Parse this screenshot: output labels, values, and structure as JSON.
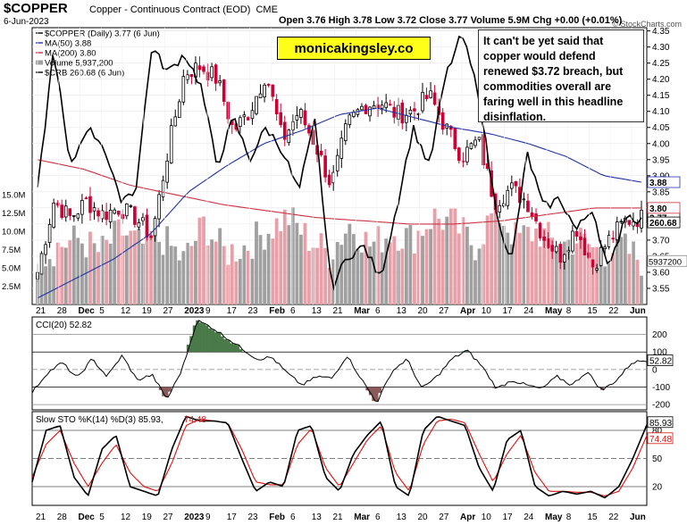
{
  "header": {
    "symbol": "$COPPER",
    "name": "Copper - Continuous Contract (EOD)",
    "exchange": "CME",
    "date": "6-Jun-2023",
    "credit": "© StockCharts.com",
    "ohlc": "Open 3.76  High 3.78  Low 3.72  Close 3.77  Volume 5.9M  Chg +0.00 (+0.01%)"
  },
  "logo": "monicakingsley.co",
  "note": "It can't be yet said that copper would defend renewed $3.72 breach, but commodities overall are faring well in this headline disinflation.",
  "colors": {
    "up": "#000000",
    "down": "#cc0033",
    "ma50": "#2233aa",
    "ma200": "#cc3344",
    "crb": "#000000",
    "volume": "#a0a0a0",
    "volume_down": "#e8a0a8",
    "cci_pos": "#4a7a4a",
    "cci_neg": "#8a5a5a",
    "stoch_k": "#000000",
    "stoch_d": "#dd1111"
  },
  "legend": [
    {
      "text": "$COPPER (Daily) 3.77 (6 Jun)"
    },
    {
      "text": "MA(50) 3.88"
    },
    {
      "text": "MA(200) 3.80"
    },
    {
      "text": "Volume 5,937,200"
    },
    {
      "text": "$CRB 260.68 (6 Jun)"
    }
  ],
  "chart_data": [
    {
      "type": "candlestick",
      "ylim": [
        3.5,
        4.36
      ],
      "ticks_right": [
        "3.55",
        "3.60",
        "3.65",
        "3.70",
        "3.75",
        "3.80",
        "3.85",
        "3.90",
        "3.95",
        "4.00",
        "4.05",
        "4.10",
        "4.15",
        "4.20",
        "4.25",
        "4.30",
        "4.35"
      ],
      "price_labels": [
        "3.77",
        "3.80",
        "3.88",
        "260.68"
      ],
      "volume_ticks_left": [
        "2.5M",
        "5.0M",
        "7.5M",
        "10.0M",
        "12.5M",
        "15.0M"
      ],
      "volume_label": "5937200",
      "x_labels": [
        "21",
        "28",
        "Dec",
        "5",
        "12",
        "19",
        "27",
        "2023",
        "9",
        "17",
        "23",
        "Feb",
        "6",
        "13",
        "21",
        "Mar",
        "6",
        "13",
        "20",
        "27",
        "Apr",
        "10",
        "17",
        "24",
        "May",
        "8",
        "15",
        "22",
        "Jun"
      ],
      "waypoints": {
        "close": [
          3.6,
          3.82,
          3.77,
          3.82,
          3.78,
          3.8,
          3.77,
          3.71,
          3.98,
          4.22,
          4.24,
          4.2,
          4.04,
          4.1,
          4.22,
          4.01,
          4.1,
          4.0,
          3.87,
          4.06,
          4.12,
          4.13,
          4.09,
          4.1,
          4.15,
          4.05,
          3.96,
          4.01,
          3.82,
          3.86,
          3.82,
          3.71,
          3.65,
          3.74,
          3.62,
          3.7,
          3.76,
          3.77
        ],
        "crb": [
          3.85,
          4.3,
          3.92,
          4.05,
          4.0,
          3.83,
          3.85,
          4.3,
          4.22,
          4.28,
          4.18,
          3.93,
          4.08,
          3.95,
          4.05,
          3.98,
          3.85,
          4.07,
          3.55,
          3.65,
          3.68,
          3.58,
          3.8,
          4.05,
          3.93,
          4.21,
          4.34,
          4.16,
          3.82,
          3.62,
          3.97,
          3.8,
          3.83,
          3.73,
          3.8,
          3.6,
          3.78,
          3.76
        ],
        "ma50": [
          3.52,
          3.58,
          3.64,
          3.72,
          3.85,
          3.93,
          4.0,
          4.04,
          4.09,
          4.11,
          4.08,
          4.05,
          4.03,
          4.0,
          3.96,
          3.9,
          3.88
        ],
        "ma200": [
          3.95,
          3.92,
          3.87,
          3.84,
          3.81,
          3.79,
          3.77,
          3.76,
          3.75,
          3.75,
          3.76,
          3.78,
          3.8,
          3.8
        ],
        "volume_millions": [
          6,
          8,
          9,
          7,
          10,
          8,
          9,
          6,
          11,
          7,
          8,
          10,
          12,
          9,
          7,
          11,
          8,
          10,
          9,
          12,
          11,
          8,
          13,
          9,
          10,
          8,
          9,
          7,
          8,
          6
        ]
      }
    },
    {
      "type": "line",
      "title": "CCI(20) 52.82",
      "ticks_right": [
        "-200",
        "-100",
        "0",
        "100",
        "200"
      ],
      "value_label": "52.82",
      "ylim": [
        -230,
        300
      ],
      "waypoints": [
        -130,
        -20,
        40,
        -50,
        60,
        -40,
        80,
        -60,
        -30,
        -170,
        0,
        280,
        240,
        180,
        120,
        60,
        70,
        -20,
        -90,
        -40,
        -50,
        80,
        -60,
        -190,
        -10,
        60,
        -110,
        -40,
        60,
        110,
        20,
        -110,
        -60,
        -90,
        -110,
        -40,
        -90,
        -10,
        -120,
        -60,
        40,
        52.82
      ]
    },
    {
      "type": "line",
      "title": "Slow STO %K(14) %D(3) 85.93, 74.48",
      "ticks_right": [
        "20",
        "50",
        "80"
      ],
      "value_labels": [
        "85.93",
        "74.48"
      ],
      "ylim": [
        0,
        100
      ],
      "waypoints": {
        "k": [
          25,
          80,
          85,
          30,
          10,
          60,
          75,
          20,
          15,
          10,
          60,
          95,
          90,
          90,
          88,
          50,
          15,
          25,
          20,
          80,
          85,
          30,
          15,
          55,
          75,
          90,
          20,
          10,
          80,
          95,
          90,
          85,
          40,
          15,
          70,
          80,
          20,
          10,
          15,
          12,
          15,
          8,
          20,
          50,
          85.93
        ],
        "d": [
          30,
          65,
          80,
          45,
          20,
          45,
          65,
          35,
          20,
          15,
          45,
          85,
          92,
          90,
          88,
          60,
          25,
          22,
          22,
          65,
          82,
          40,
          20,
          45,
          70,
          85,
          35,
          15,
          65,
          90,
          92,
          88,
          55,
          25,
          55,
          75,
          35,
          15,
          15,
          14,
          14,
          10,
          15,
          40,
          74.48
        ]
      }
    }
  ]
}
